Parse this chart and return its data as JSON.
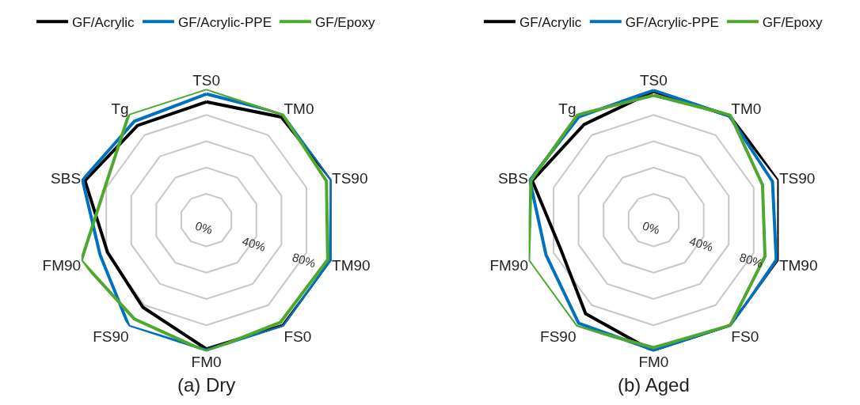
{
  "chart_data": [
    {
      "type": "radar",
      "title": "(a) Dry",
      "categories": [
        "TS0",
        "TM0",
        "TS90",
        "TM90",
        "FS0",
        "FM0",
        "FS90",
        "FM90",
        "SBS",
        "Tg"
      ],
      "series": [
        {
          "name": "GF/Acrylic",
          "color": "#000000",
          "values": [
            90,
            97,
            100,
            100,
            99,
            98,
            82,
            79,
            97,
            89
          ]
        },
        {
          "name": "GF/Acrylic-PPE",
          "color": "#0070c0",
          "values": [
            96,
            100,
            100,
            99,
            100,
            99,
            100,
            85,
            99,
            93
          ]
        },
        {
          "name": "GF/Epoxy",
          "color": "#4ea72e",
          "values": [
            100,
            99,
            96,
            97,
            96,
            100,
            93,
            100,
            81,
            100
          ]
        }
      ],
      "ylim": [
        0,
        100
      ],
      "yticks": [
        {
          "value": 0,
          "label": "0%"
        },
        {
          "value": 40,
          "label": "40%"
        },
        {
          "value": 80,
          "label": "80%"
        }
      ],
      "grid": true,
      "legend": "top"
    },
    {
      "type": "radar",
      "title": "(b) Aged",
      "categories": [
        "TS0",
        "TM0",
        "TS90",
        "TM90",
        "FS0",
        "FM0",
        "FS90",
        "FM90",
        "SBS",
        "Tg"
      ],
      "series": [
        {
          "name": "GF/Acrylic",
          "color": "#000000",
          "values": [
            98,
            98,
            100,
            100,
            99,
            100,
            88,
            74,
            97,
            90
          ]
        },
        {
          "name": "GF/Acrylic-PPE",
          "color": "#0070c0",
          "values": [
            99,
            98,
            95,
            98,
            100,
            99,
            97,
            86,
            99,
            97
          ]
        },
        {
          "name": "GF/Epoxy",
          "color": "#4ea72e",
          "values": [
            95,
            99,
            87,
            89,
            99,
            97,
            100,
            100,
            98,
            99
          ]
        }
      ],
      "ylim": [
        0,
        100
      ],
      "yticks": [
        {
          "value": 0,
          "label": "0%"
        },
        {
          "value": 40,
          "label": "40%"
        },
        {
          "value": 80,
          "label": "80%"
        }
      ],
      "grid": true,
      "legend": "top"
    }
  ]
}
